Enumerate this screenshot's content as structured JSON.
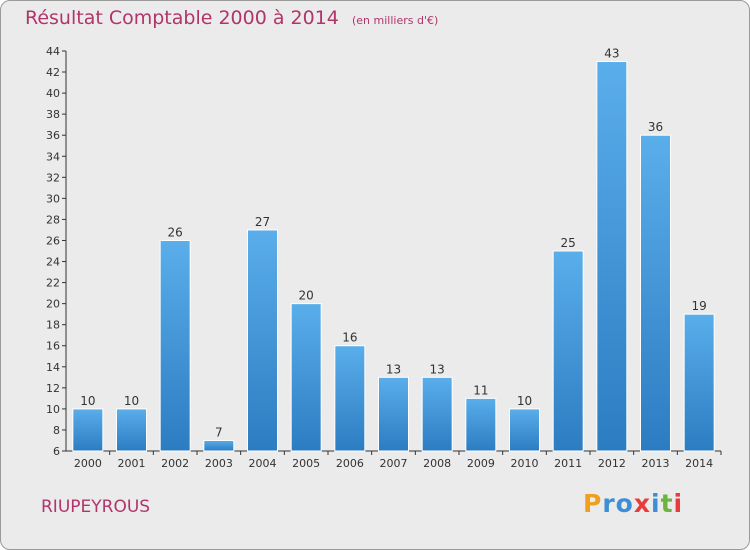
{
  "chart_data": {
    "type": "bar",
    "title": "Résultat Comptable 2000 à 2014",
    "subtitle": "(en milliers d'€)",
    "categories": [
      "2000",
      "2001",
      "2002",
      "2003",
      "2004",
      "2005",
      "2006",
      "2007",
      "2008",
      "2009",
      "2010",
      "2011",
      "2012",
      "2013",
      "2014"
    ],
    "values": [
      10,
      10,
      26,
      7,
      27,
      20,
      16,
      13,
      13,
      11,
      10,
      25,
      43,
      36,
      19
    ],
    "ylim": [
      6,
      44
    ],
    "yticks": [
      6,
      8,
      10,
      12,
      14,
      16,
      18,
      20,
      22,
      24,
      26,
      28,
      30,
      32,
      34,
      36,
      38,
      40,
      42,
      44
    ],
    "xlabel": "",
    "ylabel": "",
    "grid": false,
    "bar_color": "#4a9ee0"
  },
  "commune": "RIUPEYROUS",
  "logo": {
    "letters": [
      "P",
      "r",
      "o",
      "x",
      "i",
      "t",
      "i"
    ],
    "colors": [
      "#f0a020",
      "#3c8fd4",
      "#3c8fd4",
      "#e83c3c",
      "#3c8fd4",
      "#6cb33f",
      "#e83c3c"
    ]
  },
  "colors": {
    "accent": "#b0356a",
    "axis": "#333333"
  }
}
